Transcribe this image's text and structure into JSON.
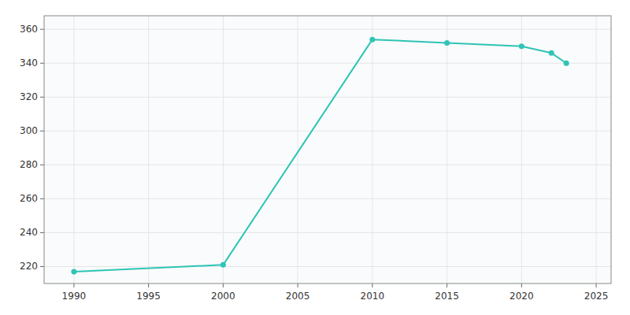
{
  "chart_data": {
    "type": "line",
    "x": [
      1990,
      2000,
      2010,
      2015,
      2020,
      2022,
      2023
    ],
    "values": [
      217,
      221,
      354,
      352,
      350,
      346,
      340
    ],
    "color": "#2ec4b6",
    "marker": "circle",
    "grid": true,
    "xlim": [
      1988,
      2026
    ],
    "ylim": [
      210,
      368
    ],
    "xticks": [
      1990,
      1995,
      2000,
      2005,
      2010,
      2015,
      2020,
      2025
    ],
    "yticks": [
      220,
      240,
      260,
      280,
      300,
      320,
      340,
      360
    ]
  }
}
